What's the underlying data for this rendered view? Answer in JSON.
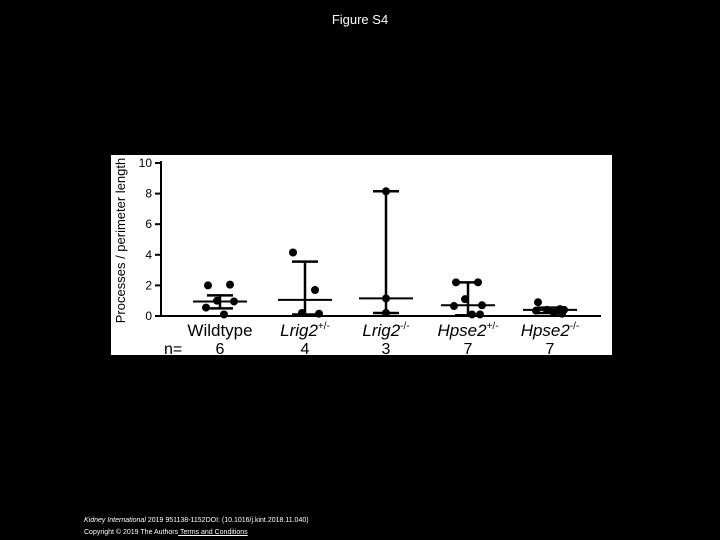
{
  "slide": {
    "title": "Figure S4"
  },
  "footer": {
    "journal": "Kidney International",
    "citation": " 2019 951138-1152DOI: (10.1016/j.kint.2018.11.040) ",
    "copyright": "Copyright © 2019 The Authors",
    "link_text": " Terms and Conditions"
  },
  "chart_data": {
    "type": "scatter",
    "ylabel": "Processes / perimeter length",
    "ylim": [
      0,
      10
    ],
    "yticks": [
      "0",
      "2",
      "4",
      "6",
      "8",
      "10"
    ],
    "n_label": "n=",
    "groups": [
      {
        "name": "Wildtype",
        "base": "Wildtype",
        "sup": "",
        "n": "6",
        "mean": 0.95,
        "err_low": 0.5,
        "err_high": 1.35,
        "points": [
          2.0,
          2.05,
          1.0,
          0.95,
          0.55,
          0.1
        ]
      },
      {
        "name": "Lrig2+/-",
        "base": "Lrig2",
        "sup": "+/-",
        "n": "4",
        "mean": 1.05,
        "err_low": 0.1,
        "err_high": 3.55,
        "points": [
          4.15,
          1.7,
          0.2,
          0.15
        ]
      },
      {
        "name": "Lrig2-/-",
        "base": "Lrig2",
        "sup": "-/-",
        "n": "3",
        "mean": 1.15,
        "err_low": 0.2,
        "err_high": 8.15,
        "points": [
          8.15,
          1.15,
          0.2
        ]
      },
      {
        "name": "Hpse2+/-",
        "base": "Hpse2",
        "sup": "+/-",
        "n": "7",
        "mean": 0.7,
        "err_low": 0.05,
        "err_high": 2.2,
        "points": [
          2.2,
          2.2,
          1.1,
          0.7,
          0.65,
          0.1,
          0.1
        ]
      },
      {
        "name": "Hpse2-/-",
        "base": "Hpse2",
        "sup": "-/-",
        "n": "7",
        "mean": 0.4,
        "err_low": 0.2,
        "err_high": 0.55,
        "points": [
          0.9,
          0.45,
          0.4,
          0.4,
          0.35,
          0.2,
          0.15
        ]
      }
    ]
  }
}
